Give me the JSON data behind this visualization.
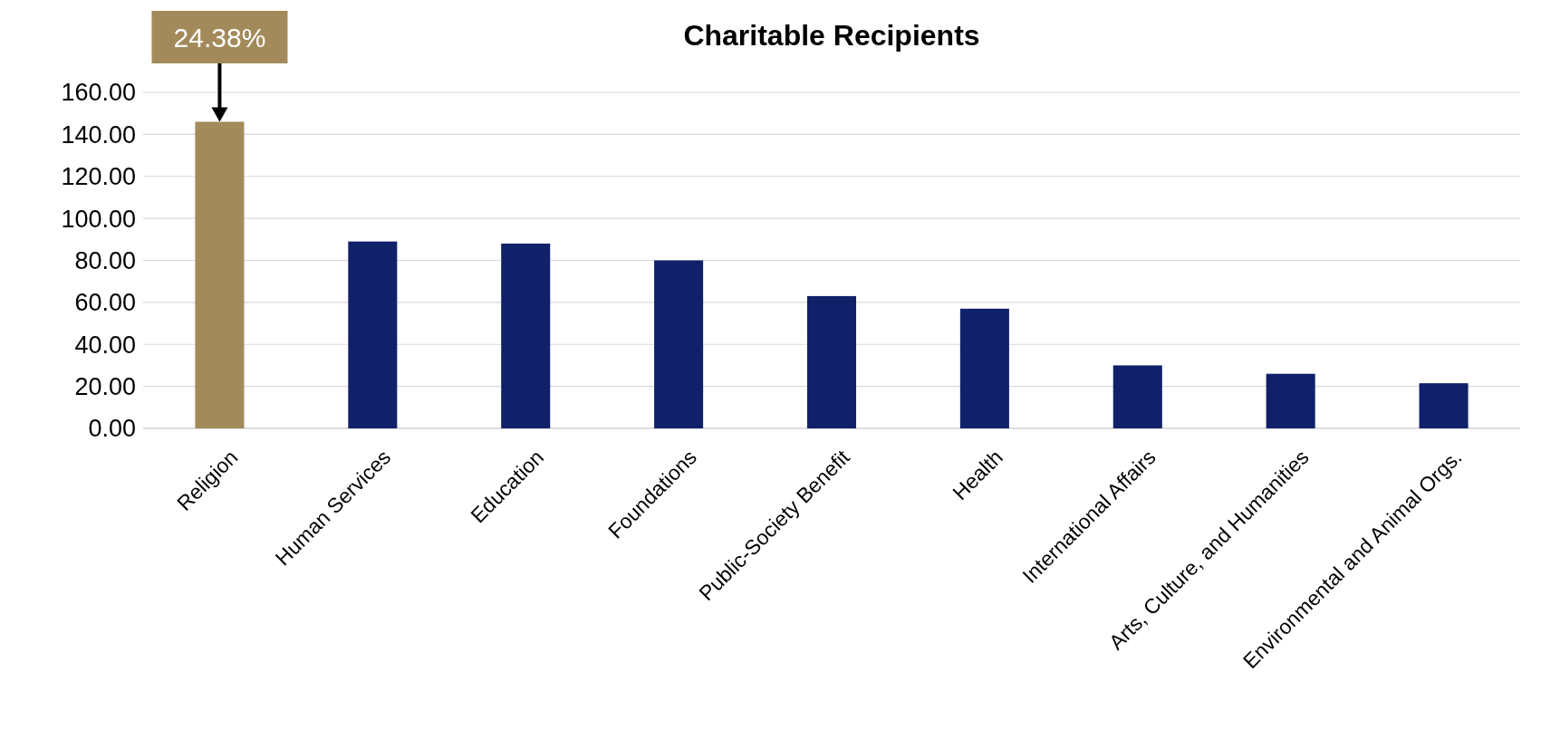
{
  "chart_data": {
    "type": "bar",
    "title": "Charitable Recipients",
    "categories": [
      "Religion",
      "Human Services",
      "Education",
      "Foundations",
      "Public-Society Benefit",
      "Health",
      "International Affairs",
      "Arts, Culture, and Humanities",
      "Environmental and Animal Orgs."
    ],
    "values": [
      146,
      89,
      88,
      80,
      63,
      57,
      30,
      26,
      21.5
    ],
    "colors": [
      "#a38a5a",
      "#10216a",
      "#10216a",
      "#10216a",
      "#10216a",
      "#10216a",
      "#10216a",
      "#10216a",
      "#10216a"
    ],
    "ylim": [
      0,
      160
    ],
    "yticks": [
      {
        "value": 0,
        "label": "0.00"
      },
      {
        "value": 20,
        "label": "20.00"
      },
      {
        "value": 40,
        "label": "40.00"
      },
      {
        "value": 60,
        "label": "60.00"
      },
      {
        "value": 80,
        "label": "80.00"
      },
      {
        "value": 100,
        "label": "100.00"
      },
      {
        "value": 120,
        "label": "120.00"
      },
      {
        "value": 140,
        "label": "140.00"
      },
      {
        "value": 160,
        "label": "160.00"
      }
    ],
    "grid": "y",
    "annotations": [
      {
        "text": "24.38%",
        "x": "Religion",
        "y": 146
      }
    ]
  }
}
